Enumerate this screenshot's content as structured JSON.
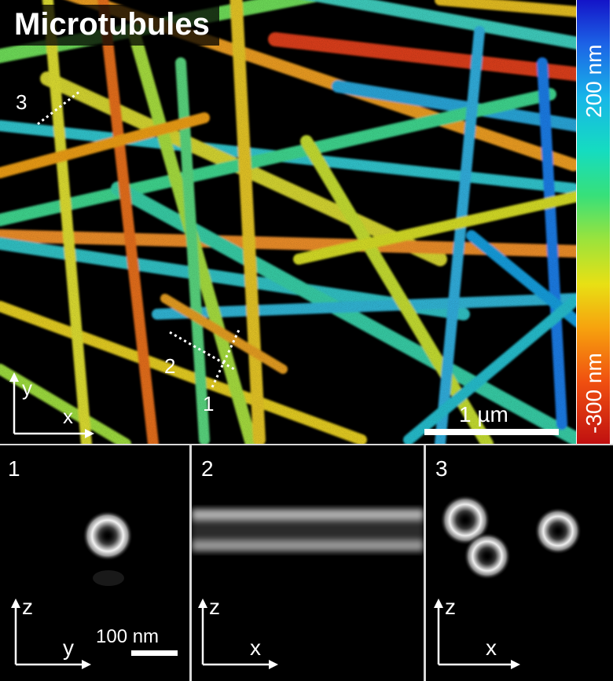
{
  "main": {
    "title": "Microtubules",
    "profiles": [
      "3",
      "2",
      "1"
    ],
    "axes": {
      "y": "y",
      "x": "x"
    },
    "scalebar": "1 µm"
  },
  "colorbar": {
    "top_label": "200 nm",
    "bottom_label": "-300 nm",
    "colors": [
      "#1414c8",
      "#1c63e6",
      "#18b6e8",
      "#15dcc0",
      "#37e07a",
      "#9be33c",
      "#e8e014",
      "#f7a20e",
      "#f05010",
      "#c01010"
    ]
  },
  "panels": [
    {
      "number": "1",
      "axis_v": "z",
      "axis_h": "y",
      "scalebar": "100 nm"
    },
    {
      "number": "2",
      "axis_v": "z",
      "axis_h": "x"
    },
    {
      "number": "3",
      "axis_v": "z",
      "axis_h": "x"
    }
  ]
}
